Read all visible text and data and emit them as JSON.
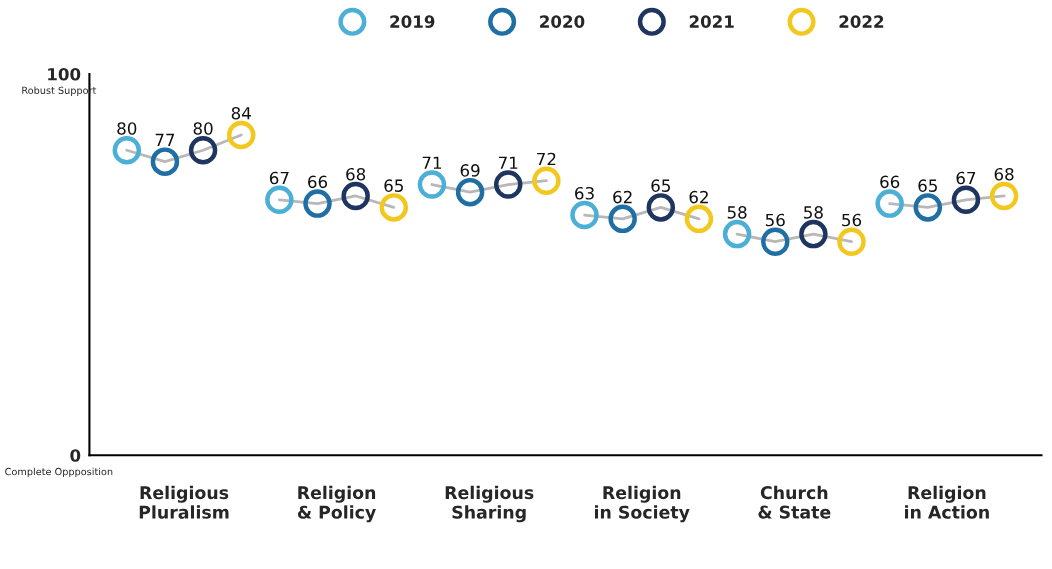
{
  "chart_data": {
    "type": "scatter",
    "categories": [
      "Religious\nPluralism",
      "Religion\n& Policy",
      "Religious\nSharing",
      "Religion\nin Society",
      "Church\n& State",
      "Religion\nin Action"
    ],
    "series": [
      {
        "name": "2019",
        "color": "#4bafd6",
        "values": [
          80,
          67,
          71,
          63,
          58,
          66
        ]
      },
      {
        "name": "2020",
        "color": "#1f6fa5",
        "values": [
          77,
          66,
          69,
          62,
          56,
          65
        ]
      },
      {
        "name": "2021",
        "color": "#1e3560",
        "values": [
          80,
          68,
          71,
          65,
          58,
          67
        ]
      },
      {
        "name": "2022",
        "color": "#f2c81f",
        "values": [
          84,
          65,
          72,
          62,
          56,
          68
        ]
      }
    ],
    "ylim": [
      0,
      100
    ],
    "yticks": [
      0,
      100
    ],
    "annotations": [
      "Robust Support",
      "Complete Oppposition"
    ],
    "marker": "circle",
    "data_labels": true,
    "legend": "top",
    "grid": false
  }
}
